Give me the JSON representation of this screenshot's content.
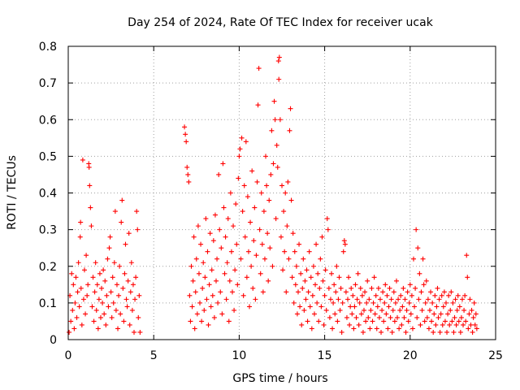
{
  "chart_data": {
    "type": "scatter",
    "title": "Day 254 of 2024, Rate Of TEC Index for receiver ucak",
    "xlabel": "GPS time / hours",
    "ylabel": "ROTI / TECUs",
    "xlim": [
      0,
      25
    ],
    "ylim": [
      0,
      0.8
    ],
    "x_ticks": [
      0,
      5,
      10,
      15,
      20,
      25
    ],
    "y_ticks": [
      0,
      0.1,
      0.2,
      0.3,
      0.4,
      0.5,
      0.6,
      0.7,
      0.8
    ],
    "x_tick_labels": [
      "0",
      "5",
      "10",
      "15",
      "20",
      "25"
    ],
    "y_tick_labels": [
      "0",
      "0.1",
      "0.2",
      "0.3",
      "0.4",
      "0.5",
      "0.6",
      "0.7",
      "0.8"
    ],
    "grid": true,
    "marker": "plus",
    "marker_color": "#ff0000",
    "points": [
      [
        0.05,
        0.02
      ],
      [
        0.1,
        0.12
      ],
      [
        0.15,
        0.05
      ],
      [
        0.2,
        0.18
      ],
      [
        0.25,
        0.08
      ],
      [
        0.3,
        0.15
      ],
      [
        0.35,
        0.03
      ],
      [
        0.4,
        0.1
      ],
      [
        0.45,
        0.17
      ],
      [
        0.5,
        0.06
      ],
      [
        0.55,
        0.13
      ],
      [
        0.6,
        0.21
      ],
      [
        0.65,
        0.09
      ],
      [
        0.7,
        0.28
      ],
      [
        0.72,
        0.32
      ],
      [
        0.75,
        0.14
      ],
      [
        0.8,
        0.04
      ],
      [
        0.85,
        0.49
      ],
      [
        0.9,
        0.11
      ],
      [
        0.95,
        0.19
      ],
      [
        1.0,
        0.07
      ],
      [
        1.05,
        0.23
      ],
      [
        1.1,
        0.12
      ],
      [
        1.15,
        0.15
      ],
      [
        1.2,
        0.48
      ],
      [
        1.22,
        0.47
      ],
      [
        1.25,
        0.42
      ],
      [
        1.3,
        0.36
      ],
      [
        1.35,
        0.31
      ],
      [
        1.4,
        0.09
      ],
      [
        1.45,
        0.17
      ],
      [
        1.5,
        0.05
      ],
      [
        1.55,
        0.13
      ],
      [
        1.6,
        0.21
      ],
      [
        1.65,
        0.08
      ],
      [
        1.7,
        0.15
      ],
      [
        1.75,
        0.03
      ],
      [
        1.8,
        0.11
      ],
      [
        1.85,
        0.18
      ],
      [
        1.9,
        0.06
      ],
      [
        1.95,
        0.14
      ],
      [
        2.0,
        0.1
      ],
      [
        2.05,
        0.19
      ],
      [
        2.1,
        0.07
      ],
      [
        2.15,
        0.16
      ],
      [
        2.2,
        0.04
      ],
      [
        2.25,
        0.12
      ],
      [
        2.3,
        0.22
      ],
      [
        2.35,
        0.09
      ],
      [
        2.4,
        0.25
      ],
      [
        2.45,
        0.28
      ],
      [
        2.5,
        0.13
      ],
      [
        2.55,
        0.06
      ],
      [
        2.6,
        0.17
      ],
      [
        2.65,
        0.1
      ],
      [
        2.7,
        0.21
      ],
      [
        2.75,
        0.35
      ],
      [
        2.8,
        0.08
      ],
      [
        2.85,
        0.15
      ],
      [
        2.9,
        0.03
      ],
      [
        2.95,
        0.12
      ],
      [
        3.0,
        0.2
      ],
      [
        3.05,
        0.07
      ],
      [
        3.1,
        0.32
      ],
      [
        3.15,
        0.38
      ],
      [
        3.2,
        0.14
      ],
      [
        3.25,
        0.05
      ],
      [
        3.3,
        0.18
      ],
      [
        3.35,
        0.26
      ],
      [
        3.4,
        0.11
      ],
      [
        3.45,
        0.09
      ],
      [
        3.5,
        0.16
      ],
      [
        3.55,
        0.29
      ],
      [
        3.6,
        0.04
      ],
      [
        3.65,
        0.13
      ],
      [
        3.7,
        0.21
      ],
      [
        3.75,
        0.08
      ],
      [
        3.8,
        0.15
      ],
      [
        3.85,
        0.02
      ],
      [
        3.9,
        0.11
      ],
      [
        3.95,
        0.17
      ],
      [
        4.0,
        0.35
      ],
      [
        4.05,
        0.3
      ],
      [
        4.1,
        0.06
      ],
      [
        4.15,
        0.12
      ],
      [
        4.2,
        0.02
      ],
      [
        6.8,
        0.58
      ],
      [
        6.85,
        0.56
      ],
      [
        6.9,
        0.54
      ],
      [
        6.95,
        0.47
      ],
      [
        7.0,
        0.45
      ],
      [
        7.05,
        0.43
      ],
      [
        7.1,
        0.12
      ],
      [
        7.15,
        0.05
      ],
      [
        7.2,
        0.2
      ],
      [
        7.25,
        0.09
      ],
      [
        7.3,
        0.16
      ],
      [
        7.35,
        0.28
      ],
      [
        7.4,
        0.03
      ],
      [
        7.45,
        0.13
      ],
      [
        7.5,
        0.22
      ],
      [
        7.55,
        0.07
      ],
      [
        7.6,
        0.31
      ],
      [
        7.65,
        0.18
      ],
      [
        7.7,
        0.1
      ],
      [
        7.75,
        0.26
      ],
      [
        7.8,
        0.05
      ],
      [
        7.85,
        0.14
      ],
      [
        7.9,
        0.21
      ],
      [
        7.95,
        0.08
      ],
      [
        8.0,
        0.17
      ],
      [
        8.05,
        0.33
      ],
      [
        8.1,
        0.11
      ],
      [
        8.15,
        0.24
      ],
      [
        8.2,
        0.04
      ],
      [
        8.25,
        0.15
      ],
      [
        8.3,
        0.29
      ],
      [
        8.35,
        0.09
      ],
      [
        8.4,
        0.19
      ],
      [
        8.45,
        0.12
      ],
      [
        8.5,
        0.27
      ],
      [
        8.55,
        0.06
      ],
      [
        8.6,
        0.34
      ],
      [
        8.65,
        0.16
      ],
      [
        8.7,
        0.22
      ],
      [
        8.75,
        0.1
      ],
      [
        8.8,
        0.45
      ],
      [
        8.85,
        0.3
      ],
      [
        8.9,
        0.13
      ],
      [
        8.95,
        0.25
      ],
      [
        9.0,
        0.07
      ],
      [
        9.05,
        0.48
      ],
      [
        9.1,
        0.36
      ],
      [
        9.15,
        0.18
      ],
      [
        9.2,
        0.28
      ],
      [
        9.25,
        0.11
      ],
      [
        9.3,
        0.21
      ],
      [
        9.35,
        0.33
      ],
      [
        9.4,
        0.05
      ],
      [
        9.45,
        0.16
      ],
      [
        9.5,
        0.4
      ],
      [
        9.55,
        0.24
      ],
      [
        9.6,
        0.13
      ],
      [
        9.65,
        0.31
      ],
      [
        9.7,
        0.08
      ],
      [
        9.75,
        0.19
      ],
      [
        9.8,
        0.37
      ],
      [
        9.85,
        0.26
      ],
      [
        9.9,
        0.15
      ],
      [
        9.95,
        0.44
      ],
      [
        10.0,
        0.5
      ],
      [
        10.05,
        0.52
      ],
      [
        10.1,
        0.22
      ],
      [
        10.15,
        0.55
      ],
      [
        10.2,
        0.35
      ],
      [
        10.25,
        0.12
      ],
      [
        10.3,
        0.42
      ],
      [
        10.35,
        0.28
      ],
      [
        10.4,
        0.54
      ],
      [
        10.45,
        0.17
      ],
      [
        10.5,
        0.39
      ],
      [
        10.55,
        0.24
      ],
      [
        10.6,
        0.09
      ],
      [
        10.65,
        0.32
      ],
      [
        10.7,
        0.2
      ],
      [
        10.75,
        0.46
      ],
      [
        10.8,
        0.14
      ],
      [
        10.85,
        0.27
      ],
      [
        10.9,
        0.36
      ],
      [
        10.95,
        0.11
      ],
      [
        11.0,
        0.23
      ],
      [
        11.05,
        0.43
      ],
      [
        11.1,
        0.64
      ],
      [
        11.15,
        0.74
      ],
      [
        11.2,
        0.3
      ],
      [
        11.25,
        0.18
      ],
      [
        11.3,
        0.4
      ],
      [
        11.35,
        0.26
      ],
      [
        11.4,
        0.13
      ],
      [
        11.45,
        0.35
      ],
      [
        11.5,
        0.22
      ],
      [
        11.55,
        0.5
      ],
      [
        11.6,
        0.42
      ],
      [
        11.65,
        0.29
      ],
      [
        11.7,
        0.16
      ],
      [
        11.75,
        0.38
      ],
      [
        11.8,
        0.25
      ],
      [
        11.85,
        0.45
      ],
      [
        11.9,
        0.57
      ],
      [
        11.95,
        0.2
      ],
      [
        12.0,
        0.48
      ],
      [
        12.05,
        0.65
      ],
      [
        12.1,
        0.6
      ],
      [
        12.15,
        0.33
      ],
      [
        12.2,
        0.53
      ],
      [
        12.25,
        0.47
      ],
      [
        12.3,
        0.76
      ],
      [
        12.32,
        0.71
      ],
      [
        12.35,
        0.77
      ],
      [
        12.4,
        0.6
      ],
      [
        12.45,
        0.28
      ],
      [
        12.5,
        0.42
      ],
      [
        12.55,
        0.19
      ],
      [
        12.6,
        0.35
      ],
      [
        12.65,
        0.24
      ],
      [
        12.7,
        0.4
      ],
      [
        12.75,
        0.13
      ],
      [
        12.8,
        0.31
      ],
      [
        12.85,
        0.43
      ],
      [
        12.9,
        0.22
      ],
      [
        12.95,
        0.57
      ],
      [
        13.0,
        0.63
      ],
      [
        13.05,
        0.38
      ],
      [
        13.1,
        0.17
      ],
      [
        13.15,
        0.29
      ],
      [
        13.2,
        0.1
      ],
      [
        13.25,
        0.24
      ],
      [
        13.3,
        0.15
      ],
      [
        13.35,
        0.2
      ],
      [
        13.4,
        0.07
      ],
      [
        13.45,
        0.13
      ],
      [
        13.5,
        0.26
      ],
      [
        13.55,
        0.09
      ],
      [
        13.6,
        0.18
      ],
      [
        13.65,
        0.04
      ],
      [
        13.7,
        0.14
      ],
      [
        13.75,
        0.22
      ],
      [
        13.8,
        0.08
      ],
      [
        13.85,
        0.16
      ],
      [
        13.9,
        0.11
      ],
      [
        13.95,
        0.19
      ],
      [
        14.0,
        0.05
      ],
      [
        14.05,
        0.13
      ],
      [
        14.1,
        0.24
      ],
      [
        14.15,
        0.09
      ],
      [
        14.2,
        0.17
      ],
      [
        14.25,
        0.03
      ],
      [
        14.3,
        0.12
      ],
      [
        14.35,
        0.2
      ],
      [
        14.4,
        0.07
      ],
      [
        14.45,
        0.15
      ],
      [
        14.5,
        0.26
      ],
      [
        14.55,
        0.1
      ],
      [
        14.6,
        0.18
      ],
      [
        14.65,
        0.05
      ],
      [
        14.7,
        0.14
      ],
      [
        14.75,
        0.22
      ],
      [
        14.8,
        0.09
      ],
      [
        14.85,
        0.28
      ],
      [
        14.9,
        0.16
      ],
      [
        14.95,
        0.04
      ],
      [
        15.0,
        0.12
      ],
      [
        15.05,
        0.19
      ],
      [
        15.1,
        0.08
      ],
      [
        15.15,
        0.33
      ],
      [
        15.2,
        0.3
      ],
      [
        15.25,
        0.14
      ],
      [
        15.3,
        0.06
      ],
      [
        15.35,
        0.11
      ],
      [
        15.4,
        0.18
      ],
      [
        15.45,
        0.03
      ],
      [
        15.5,
        0.1
      ],
      [
        15.55,
        0.15
      ],
      [
        15.6,
        0.07
      ],
      [
        15.65,
        0.13
      ],
      [
        15.7,
        0.2
      ],
      [
        15.75,
        0.05
      ],
      [
        15.8,
        0.11
      ],
      [
        15.85,
        0.17
      ],
      [
        15.9,
        0.08
      ],
      [
        15.95,
        0.14
      ],
      [
        16.0,
        0.02
      ],
      [
        16.05,
        0.1
      ],
      [
        16.1,
        0.24
      ],
      [
        16.15,
        0.27
      ],
      [
        16.2,
        0.26
      ],
      [
        16.25,
        0.13
      ],
      [
        16.3,
        0.06
      ],
      [
        16.35,
        0.11
      ],
      [
        16.4,
        0.17
      ],
      [
        16.45,
        0.04
      ],
      [
        16.5,
        0.09
      ],
      [
        16.55,
        0.14
      ],
      [
        16.6,
        0.07
      ],
      [
        16.65,
        0.12
      ],
      [
        16.7,
        0.03
      ],
      [
        16.75,
        0.09
      ],
      [
        16.8,
        0.15
      ],
      [
        16.85,
        0.06
      ],
      [
        16.9,
        0.11
      ],
      [
        16.95,
        0.18
      ],
      [
        17.0,
        0.04
      ],
      [
        17.05,
        0.1
      ],
      [
        17.1,
        0.14
      ],
      [
        17.15,
        0.07
      ],
      [
        17.2,
        0.12
      ],
      [
        17.25,
        0.02
      ],
      [
        17.3,
        0.08
      ],
      [
        17.35,
        0.13
      ],
      [
        17.4,
        0.05
      ],
      [
        17.45,
        0.1
      ],
      [
        17.5,
        0.16
      ],
      [
        17.55,
        0.06
      ],
      [
        17.6,
        0.11
      ],
      [
        17.65,
        0.03
      ],
      [
        17.7,
        0.08
      ],
      [
        17.75,
        0.14
      ],
      [
        17.8,
        0.05
      ],
      [
        17.85,
        0.1
      ],
      [
        17.9,
        0.17
      ],
      [
        17.95,
        0.07
      ],
      [
        18.0,
        0.12
      ],
      [
        18.05,
        0.03
      ],
      [
        18.1,
        0.09
      ],
      [
        18.15,
        0.14
      ],
      [
        18.2,
        0.06
      ],
      [
        18.25,
        0.11
      ],
      [
        18.3,
        0.02
      ],
      [
        18.35,
        0.08
      ],
      [
        18.4,
        0.13
      ],
      [
        18.45,
        0.05
      ],
      [
        18.5,
        0.1
      ],
      [
        18.55,
        0.15
      ],
      [
        18.6,
        0.07
      ],
      [
        18.65,
        0.12
      ],
      [
        18.7,
        0.03
      ],
      [
        18.75,
        0.09
      ],
      [
        18.8,
        0.14
      ],
      [
        18.85,
        0.06
      ],
      [
        18.9,
        0.11
      ],
      [
        18.95,
        0.02
      ],
      [
        19.0,
        0.08
      ],
      [
        19.05,
        0.13
      ],
      [
        19.1,
        0.05
      ],
      [
        19.15,
        0.1
      ],
      [
        19.2,
        0.16
      ],
      [
        19.25,
        0.06
      ],
      [
        19.3,
        0.11
      ],
      [
        19.35,
        0.03
      ],
      [
        19.4,
        0.08
      ],
      [
        19.45,
        0.12
      ],
      [
        19.5,
        0.04
      ],
      [
        19.55,
        0.09
      ],
      [
        19.6,
        0.14
      ],
      [
        19.65,
        0.06
      ],
      [
        19.7,
        0.11
      ],
      [
        19.75,
        0.02
      ],
      [
        19.8,
        0.08
      ],
      [
        19.85,
        0.13
      ],
      [
        19.9,
        0.05
      ],
      [
        19.95,
        0.1
      ],
      [
        20.0,
        0.15
      ],
      [
        20.05,
        0.07
      ],
      [
        20.1,
        0.12
      ],
      [
        20.15,
        0.03
      ],
      [
        20.2,
        0.22
      ],
      [
        20.25,
        0.09
      ],
      [
        20.3,
        0.14
      ],
      [
        20.35,
        0.3
      ],
      [
        20.4,
        0.06
      ],
      [
        20.45,
        0.25
      ],
      [
        20.5,
        0.11
      ],
      [
        20.55,
        0.18
      ],
      [
        20.6,
        0.04
      ],
      [
        20.65,
        0.13
      ],
      [
        20.7,
        0.08
      ],
      [
        20.75,
        0.22
      ],
      [
        20.8,
        0.15
      ],
      [
        20.85,
        0.05
      ],
      [
        20.9,
        0.1
      ],
      [
        20.95,
        0.16
      ],
      [
        21.0,
        0.06
      ],
      [
        21.05,
        0.11
      ],
      [
        21.1,
        0.03
      ],
      [
        21.15,
        0.08
      ],
      [
        21.2,
        0.13
      ],
      [
        21.25,
        0.05
      ],
      [
        21.3,
        0.1
      ],
      [
        21.35,
        0.02
      ],
      [
        21.4,
        0.07
      ],
      [
        21.45,
        0.12
      ],
      [
        21.5,
        0.04
      ],
      [
        21.55,
        0.09
      ],
      [
        21.6,
        0.14
      ],
      [
        21.65,
        0.06
      ],
      [
        21.7,
        0.11
      ],
      [
        21.75,
        0.02
      ],
      [
        21.8,
        0.07
      ],
      [
        21.85,
        0.12
      ],
      [
        21.9,
        0.04
      ],
      [
        21.95,
        0.09
      ],
      [
        22.0,
        0.13
      ],
      [
        22.05,
        0.05
      ],
      [
        22.1,
        0.1
      ],
      [
        22.15,
        0.02
      ],
      [
        22.2,
        0.07
      ],
      [
        22.25,
        0.12
      ],
      [
        22.3,
        0.04
      ],
      [
        22.35,
        0.08
      ],
      [
        22.4,
        0.13
      ],
      [
        22.45,
        0.05
      ],
      [
        22.5,
        0.1
      ],
      [
        22.55,
        0.02
      ],
      [
        22.6,
        0.06
      ],
      [
        22.65,
        0.11
      ],
      [
        22.7,
        0.04
      ],
      [
        22.75,
        0.08
      ],
      [
        22.8,
        0.12
      ],
      [
        22.85,
        0.05
      ],
      [
        22.9,
        0.09
      ],
      [
        22.95,
        0.02
      ],
      [
        23.0,
        0.06
      ],
      [
        23.05,
        0.11
      ],
      [
        23.1,
        0.04
      ],
      [
        23.15,
        0.08
      ],
      [
        23.2,
        0.12
      ],
      [
        23.25,
        0.05
      ],
      [
        23.3,
        0.23
      ],
      [
        23.35,
        0.17
      ],
      [
        23.4,
        0.03
      ],
      [
        23.45,
        0.07
      ],
      [
        23.5,
        0.11
      ],
      [
        23.55,
        0.04
      ],
      [
        23.6,
        0.08
      ],
      [
        23.65,
        0.02
      ],
      [
        23.7,
        0.06
      ],
      [
        23.75,
        0.1
      ],
      [
        23.8,
        0.04
      ],
      [
        23.85,
        0.07
      ],
      [
        23.9,
        0.03
      ]
    ]
  }
}
